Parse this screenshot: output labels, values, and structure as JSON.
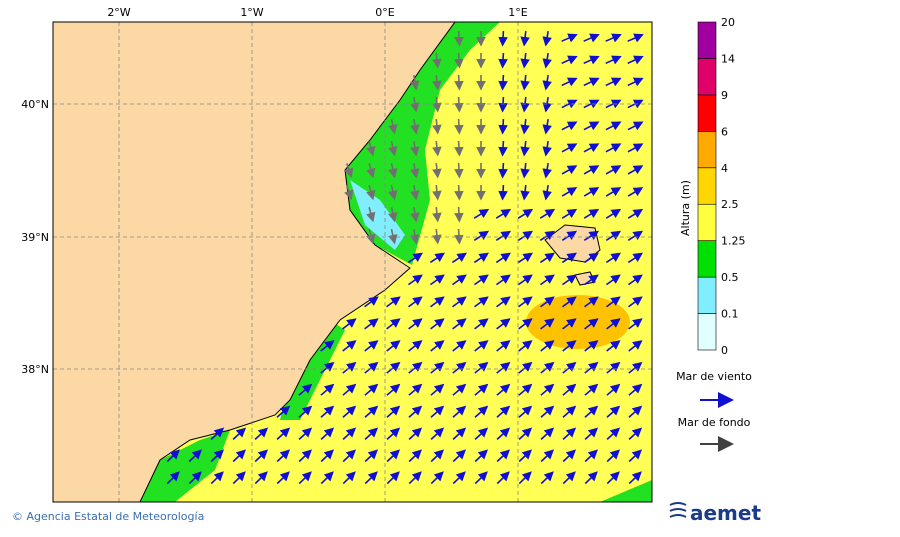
{
  "map": {
    "lon_labels": [
      "2°W",
      "1°W",
      "0°E",
      "1°E"
    ],
    "lat_labels": [
      "40°N",
      "39°N",
      "38°N"
    ],
    "colorbar": {
      "title": "Altura (m)",
      "levels": [
        "0",
        "0.1",
        "0.5",
        "1.25",
        "2.5",
        "4",
        "6",
        "9",
        "14",
        "20"
      ]
    },
    "legend": {
      "wind_sea": "Mar de viento",
      "swell": "Mar de fondo"
    },
    "footer": {
      "credit": "© Agencia Estatal de Meteorología",
      "logo": "aemet"
    }
  }
}
